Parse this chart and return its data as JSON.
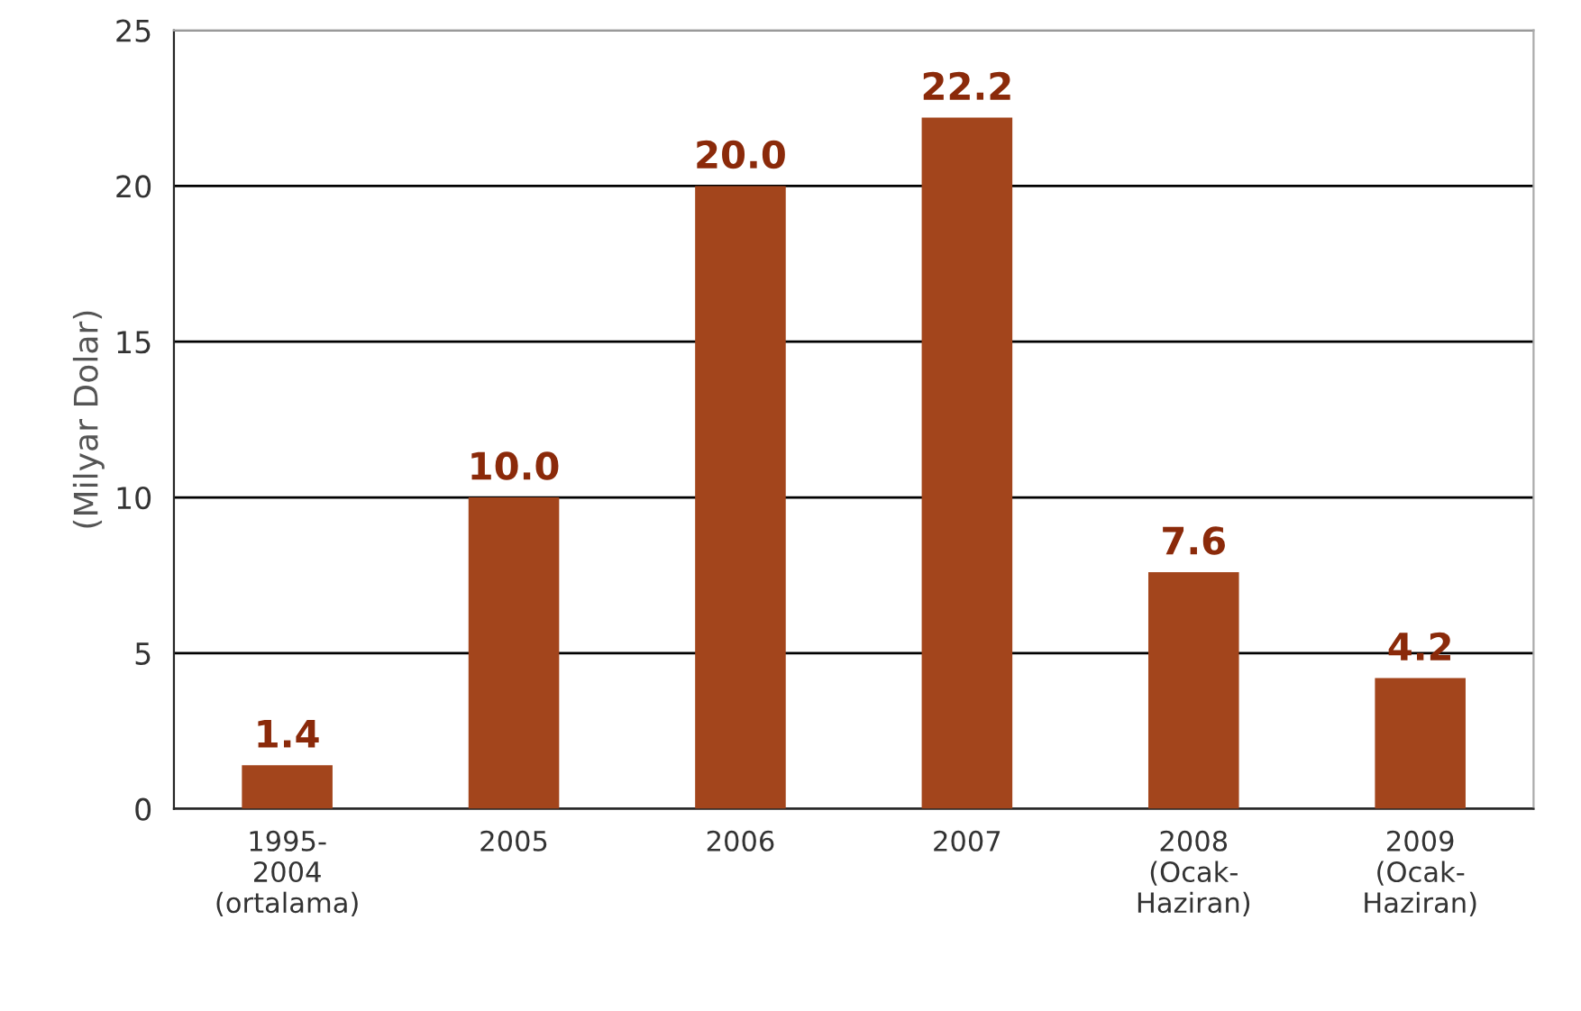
{
  "chart_data": {
    "type": "bar",
    "ylabel": "(Milyar Dolar)",
    "categories": [
      "1995-\n2004\n(ortalama)",
      "2005",
      "2006",
      "2007",
      "2008\n(Ocak-\nHaziran)",
      "2009\n(Ocak-\nHaziran)"
    ],
    "values": [
      1.4,
      10.0,
      20.0,
      22.2,
      7.6,
      4.2
    ],
    "value_labels": [
      "1.4",
      "10.0",
      "20.0",
      "22.2",
      "7.6",
      "4.2"
    ],
    "color": "#a3451c",
    "ylim": [
      0,
      25
    ],
    "yticks": [
      0,
      5,
      10,
      15,
      20,
      25
    ],
    "grid": "y"
  }
}
